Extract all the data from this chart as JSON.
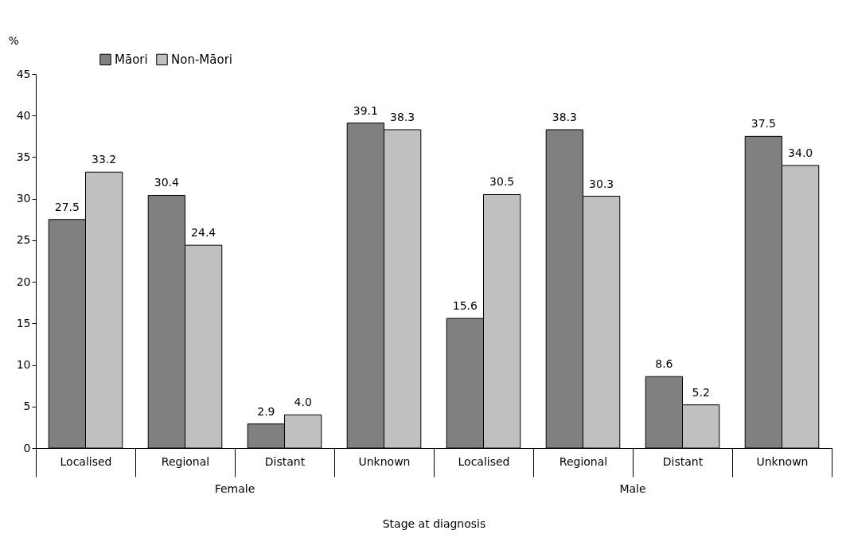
{
  "chart_data": {
    "type": "bar",
    "ylabel": "%",
    "xlabel": "Stage at diagnosis",
    "categories": [
      "Localised",
      "Regional",
      "Distant",
      "Unknown",
      "Localised",
      "Regional",
      "Distant",
      "Unknown"
    ],
    "series": [
      {
        "name": "Māori",
        "color": "#808080",
        "values": [
          27.5,
          30.4,
          2.9,
          39.1,
          15.6,
          38.3,
          8.6,
          37.5
        ],
        "value_labels": [
          "27.5",
          "30.4",
          "2.9",
          "39.1",
          "15.6",
          "38.3",
          "8.6",
          "37.5"
        ]
      },
      {
        "name": "Non-Māori",
        "color": "#c0c0c0",
        "values": [
          33.2,
          24.4,
          4.0,
          38.3,
          30.5,
          30.3,
          5.2,
          34.0
        ],
        "value_labels": [
          "33.2",
          "24.4",
          "4.0",
          "38.3",
          "30.5",
          "30.3",
          "5.2",
          "34.0"
        ]
      }
    ],
    "ylim": [
      0,
      45
    ],
    "yticks": [
      0,
      5,
      10,
      15,
      20,
      25,
      30,
      35,
      40,
      45
    ],
    "grid": false,
    "legend": "top left",
    "annotations": [
      "Female",
      "Male"
    ]
  }
}
